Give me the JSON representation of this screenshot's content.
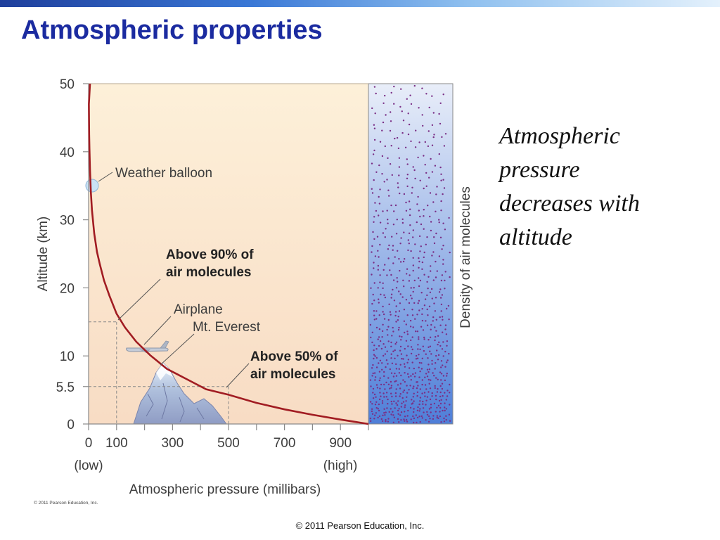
{
  "slide": {
    "title": "Atmospheric properties",
    "side_text": [
      "Atmospheric",
      "pressure",
      "decreases with",
      "altitude"
    ],
    "figure_copyright": "© 2011 Pearson Education, Inc.",
    "footer": "© 2011 Pearson Education, Inc."
  },
  "colors": {
    "title": "#1b2ba0",
    "curve": "#a11c22",
    "plot_bg_top": "#fdf0d9",
    "plot_bg_bottom": "#f8dcc4",
    "density_top": "#e9eef9",
    "density_bottom": "#4f7fd8",
    "dots": "#7a2f86"
  },
  "chart_data": {
    "type": "line",
    "xlabel": "Atmospheric pressure (millibars)",
    "ylabel": "Altitude (km)",
    "density_label": "Density of air molecules",
    "xlim": [
      0,
      1000
    ],
    "ylim": [
      0,
      50
    ],
    "x_ticks": [
      0,
      100,
      300,
      500,
      700,
      900
    ],
    "x_minor_ticks": [
      200,
      400,
      600,
      800
    ],
    "y_ticks": [
      0,
      5.5,
      10,
      20,
      30,
      40,
      50
    ],
    "x_end_labels": {
      "low": "(low)",
      "high": "(high)"
    },
    "series": [
      {
        "x": [
          1,
          2,
          3,
          5,
          8,
          12,
          20,
          30,
          40,
          55,
          75,
          100,
          130,
          170,
          220,
          280,
          350,
          420,
          500,
          600,
          700,
          800,
          900,
          1000
        ],
        "y": [
          47,
          42.5,
          40.5,
          37.3,
          34.1,
          31.4,
          28,
          25.3,
          23.5,
          21.1,
          18.8,
          16.2,
          14.2,
          12.1,
          10.1,
          8.1,
          6.6,
          5.1,
          4.3,
          3.1,
          2.15,
          1.35,
          0.65,
          0
        ]
      }
    ],
    "annotations": [
      {
        "text": "Weather balloon",
        "x": 10,
        "y": 35.5,
        "style": "normal"
      },
      {
        "text": [
          "Above 90% of",
          "air molecules"
        ],
        "x": 100,
        "y": 15,
        "style": "bold"
      },
      {
        "text": "Airplane",
        "x": 190,
        "y": 11,
        "style": "normal"
      },
      {
        "text": "Mt. Everest",
        "x": 260,
        "y": 9,
        "style": "normal"
      },
      {
        "text": [
          "Above 50% of",
          "air molecules"
        ],
        "x": 500,
        "y": 5.5,
        "style": "bold"
      }
    ],
    "reference_lines": [
      {
        "x": 100,
        "y": 15
      },
      {
        "x": 500,
        "y": 5.5
      }
    ]
  }
}
